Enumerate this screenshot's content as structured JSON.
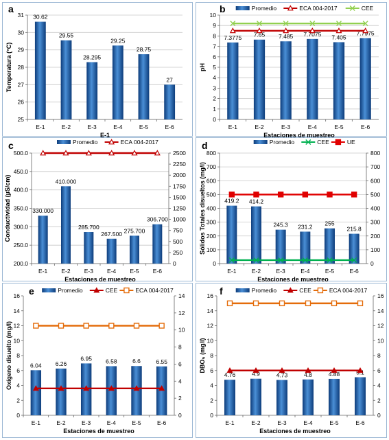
{
  "bar_gradient": [
    "#4a8fd6",
    "#0d3c7a"
  ],
  "chart_data": [
    {
      "id": "a",
      "type": "bar",
      "label": "a",
      "categories": [
        "E-1",
        "E-2",
        "E-3",
        "E-4",
        "E-5",
        "E-6"
      ],
      "series": [
        {
          "values": [
            30.62,
            29.55,
            28.295,
            29.25,
            28.75,
            27
          ],
          "labels": [
            "30.62",
            "29.55",
            "28.295",
            "29.25",
            "28.75",
            "27"
          ]
        }
      ],
      "ylabel": "Temperatura (°C)",
      "xlabel": "E-1",
      "ylim": [
        25,
        31
      ],
      "yticks": [
        25,
        26,
        27,
        28,
        29,
        30,
        31
      ],
      "legend": [],
      "grid": true
    },
    {
      "id": "b",
      "type": "bar",
      "label": "b",
      "categories": [
        "E-1",
        "E-2",
        "E-3",
        "E-4",
        "E-5",
        "E-6"
      ],
      "series": [
        {
          "name": "Promedio",
          "values": [
            7.3775,
            7.65,
            7.485,
            7.7075,
            7.405,
            7.7975
          ],
          "labels": [
            "7.3775",
            "7.65",
            "7.485",
            "7.7075",
            "7.405",
            "7.7975"
          ]
        }
      ],
      "lines": [
        {
          "name": "ECA 004-2017",
          "value": 8.5,
          "color": "#c00000",
          "marker": "triangle-open"
        },
        {
          "name": "CEE",
          "value": 9.2,
          "color": "#92d050",
          "marker": "x"
        }
      ],
      "ylabel": "pH",
      "xlabel": "Estaciones de muestreo",
      "ylim": [
        0,
        10
      ],
      "yticks": [
        0,
        1,
        2,
        3,
        4,
        5,
        6,
        7,
        8,
        9,
        10
      ],
      "legend_position": "top",
      "grid": true
    },
    {
      "id": "c",
      "type": "bar",
      "label": "c",
      "categories": [
        "E-1",
        "E-2",
        "E-3",
        "E-4",
        "E-5",
        "E-6"
      ],
      "series": [
        {
          "name": "Promedio",
          "values": [
            330.0,
            410.0,
            285.7,
            267.5,
            275.7,
            306.7
          ],
          "labels": [
            "330.000",
            "410.000",
            "285.700",
            "267.500",
            "275.700",
            "306.700"
          ]
        }
      ],
      "lines": [
        {
          "name": "ECA 004-2017",
          "value": 2500,
          "axis": "right",
          "color": "#c00000",
          "marker": "triangle-open"
        }
      ],
      "ylabel": "Conductividad (µS/cm)",
      "xlabel": "Estaciones de muestreo",
      "ylim": [
        200,
        500
      ],
      "yticks": [
        "200.0",
        "250.0",
        "300.0",
        "350.0",
        "400.0",
        "450.0",
        "500.0"
      ],
      "y2lim": [
        0,
        2500
      ],
      "y2ticks": [
        0,
        250,
        500,
        750,
        1000,
        1250,
        1500,
        1750,
        2000,
        2250,
        2500
      ],
      "legend_position": "top",
      "grid": true
    },
    {
      "id": "d",
      "type": "bar",
      "label": "d",
      "categories": [
        "E-1",
        "E-2",
        "E-3",
        "E-4",
        "E-5",
        "E-6"
      ],
      "series": [
        {
          "name": "Promedio",
          "values": [
            419.2,
            414.2,
            245.3,
            231.2,
            255,
            215.8
          ],
          "labels": [
            "419.2",
            "414.2",
            "245.3",
            "231.2",
            "255",
            "215.8"
          ]
        }
      ],
      "lines": [
        {
          "name": "CEE",
          "value": 25,
          "color": "#00b050",
          "marker": "x"
        },
        {
          "name": "UE",
          "value": 500,
          "color": "#e00000",
          "marker": "square"
        }
      ],
      "ylabel": "Sólidos Totales disueltos (mg/l)",
      "xlabel": "Estaciones de muestreo",
      "ylim": [
        0,
        800
      ],
      "yticks": [
        0,
        100,
        200,
        300,
        400,
        500,
        600,
        700,
        800
      ],
      "y2lim": [
        0,
        800
      ],
      "y2ticks": [
        0,
        100,
        200,
        300,
        400,
        500,
        600,
        700,
        800
      ],
      "legend_position": "top",
      "grid": true
    },
    {
      "id": "e",
      "type": "bar",
      "label": "e",
      "categories": [
        "E-1",
        "E-2",
        "E-3",
        "E-4",
        "E-5",
        "E-6"
      ],
      "series": [
        {
          "name": "Promedio",
          "values": [
            6.04,
            6.26,
            6.95,
            6.58,
            6.6,
            6.55
          ],
          "labels": [
            "6.04",
            "6.26",
            "6.95",
            "6.58",
            "6.6",
            "6.55"
          ]
        }
      ],
      "lines": [
        {
          "name": "CEE",
          "value": 3.6,
          "color": "#c00000",
          "marker": "triangle"
        },
        {
          "name": "ECA 004-2017",
          "value": 12,
          "color": "#e46c0a",
          "marker": "square-open"
        }
      ],
      "ylabel": "Oxígeno disuelto (mg/l)",
      "xlabel": "Estaciones de muestreo",
      "ylim": [
        0,
        16
      ],
      "yticks": [
        0,
        2,
        4,
        6,
        8,
        10,
        12,
        14,
        16
      ],
      "y2lim": [
        0,
        14
      ],
      "y2ticks": [
        0,
        2,
        4,
        6,
        8,
        10,
        12,
        14
      ],
      "legend_position": "top",
      "grid": false
    },
    {
      "id": "f",
      "type": "bar",
      "label": "f",
      "categories": [
        "E-1",
        "E-2",
        "E-3",
        "E-4",
        "E-5",
        "E-6"
      ],
      "series": [
        {
          "name": "Promedio",
          "values": [
            4.76,
            4.9,
            4.73,
            4.8,
            4.88,
            5.1
          ],
          "labels": [
            "4.76",
            "4.9",
            "4.73",
            "4.8",
            "4.88",
            "5.1"
          ]
        }
      ],
      "lines": [
        {
          "name": "CEE",
          "value": 6,
          "color": "#c00000",
          "marker": "triangle"
        },
        {
          "name": "ECA 004-2017",
          "value": 15,
          "color": "#e46c0a",
          "marker": "square-open"
        }
      ],
      "ylabel": "DBO₅ (mg/l)",
      "xlabel": "Estaciones de muestreo",
      "ylim": [
        0,
        16
      ],
      "yticks": [
        0,
        2,
        4,
        6,
        8,
        10,
        12,
        14,
        16
      ],
      "y2lim": [
        0,
        16
      ],
      "y2ticks": [
        0,
        2,
        4,
        6,
        8,
        10,
        12,
        14,
        16
      ],
      "legend_position": "top",
      "grid": false
    }
  ]
}
